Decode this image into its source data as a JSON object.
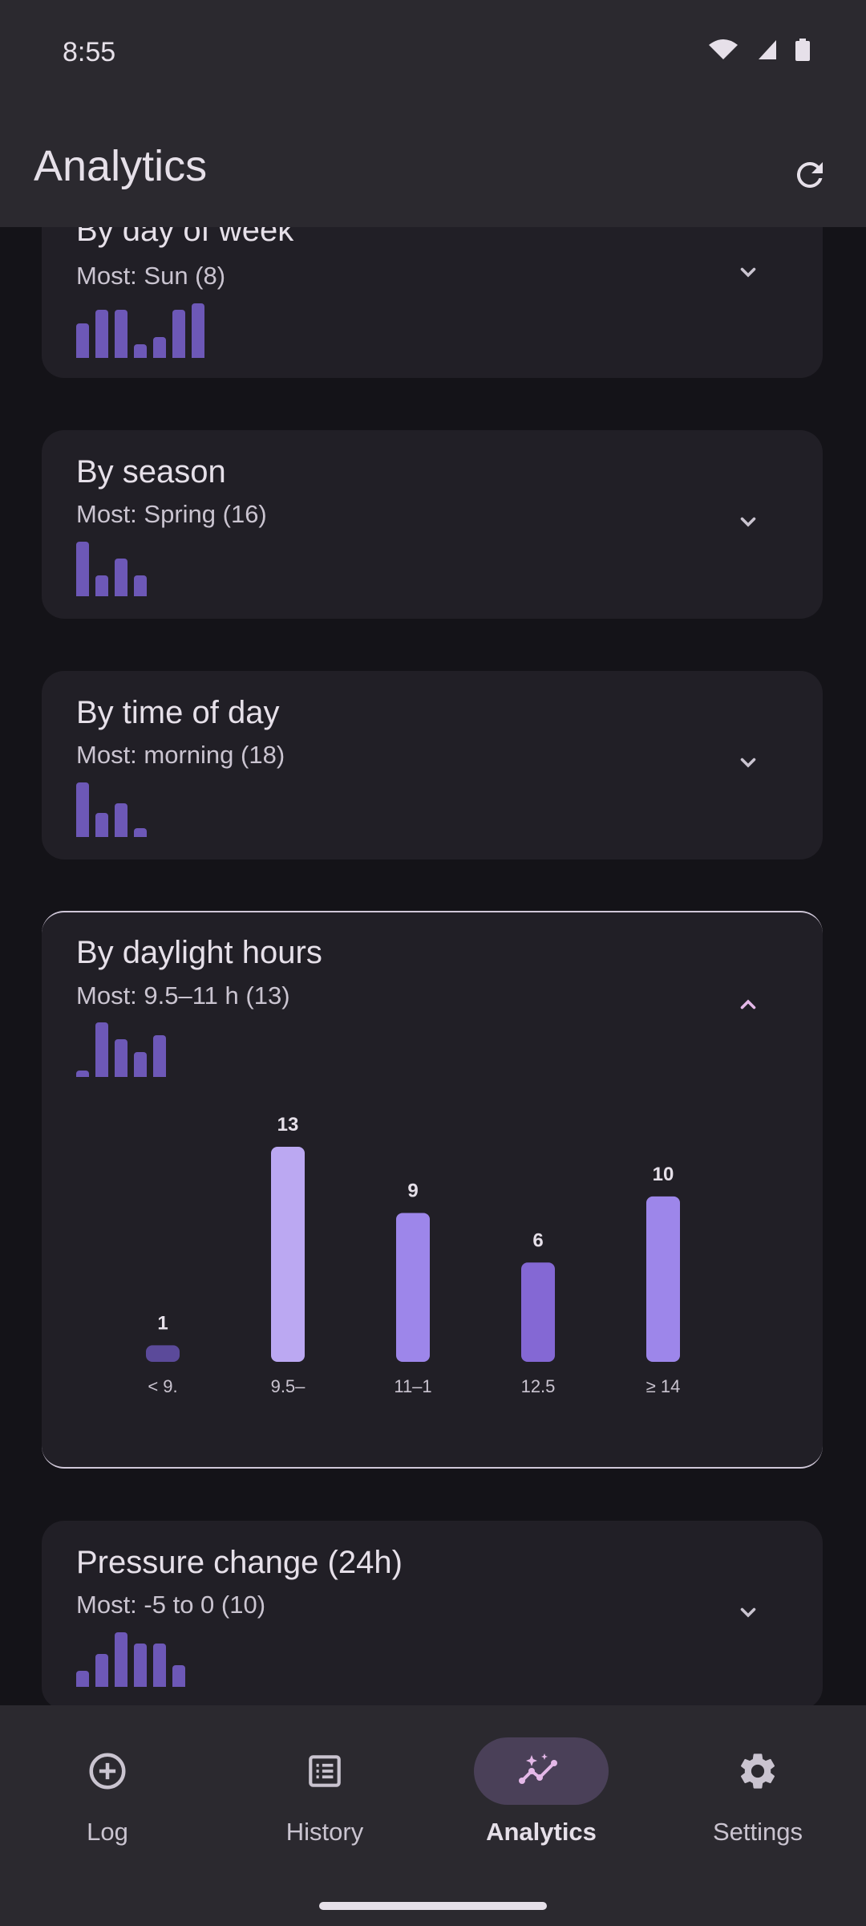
{
  "status_bar": {
    "time": "8:55"
  },
  "app_bar": {
    "title": "Analytics"
  },
  "cards": [
    {
      "title": "By day of week",
      "subtitle": "Most: Sun (8)",
      "mini_values": [
        5,
        7,
        7,
        2,
        3,
        7,
        8
      ],
      "expanded": false
    },
    {
      "title": "By season",
      "subtitle": "Most: Spring (16)",
      "mini_values": [
        16,
        6,
        11,
        6
      ],
      "expanded": false
    },
    {
      "title": "By time of day",
      "subtitle": "Most: morning (18)",
      "mini_values": [
        18,
        8,
        11,
        3
      ],
      "expanded": false
    },
    {
      "title": "By daylight hours",
      "subtitle": "Most: 9.5–11 h (13)",
      "mini_values": [
        1,
        13,
        9,
        6,
        10
      ],
      "expanded": true
    },
    {
      "title": "Pressure change (24h)",
      "subtitle": "Most: -5 to 0 (10)",
      "mini_values": [
        3,
        6,
        10,
        8,
        8,
        4
      ],
      "expanded": false
    }
  ],
  "chart_data": {
    "type": "bar",
    "categories": [
      "< 9.",
      "9.5–",
      "11–1",
      "12.5",
      "≥ 14"
    ],
    "values": [
      1,
      13,
      9,
      6,
      10
    ],
    "ylim": [
      0,
      13
    ],
    "colors": [
      "#5b4a9a",
      "#bba8f2",
      "#9d86ea",
      "#8468d4",
      "#9d86ea"
    ]
  },
  "nav": {
    "items": [
      {
        "label": "Log",
        "icon": "add-circle-icon",
        "active": false
      },
      {
        "label": "History",
        "icon": "list-icon",
        "active": false
      },
      {
        "label": "Analytics",
        "icon": "insights-icon",
        "active": true
      },
      {
        "label": "Settings",
        "icon": "gear-icon",
        "active": false
      }
    ]
  },
  "colors": {
    "accent": "#e4b8e8",
    "bar": "#6d58b7",
    "surface": "#211f26",
    "background": "#141318"
  }
}
